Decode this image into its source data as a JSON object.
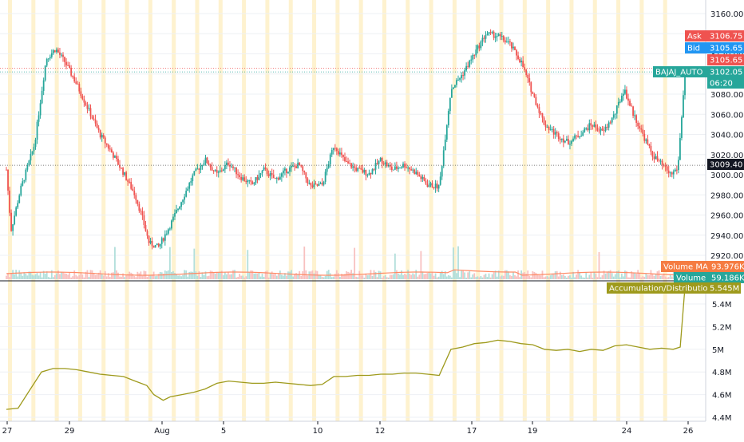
{
  "chart_data": [
    {
      "type": "line",
      "subtype": "candlestick",
      "symbol": "BAJAJ_AUTO",
      "ylim": [
        2905,
        3170
      ],
      "yticks": [
        "3160.00",
        "3140.00",
        "3120.00",
        "3100.00",
        "3080.00",
        "3060.00",
        "3040.00",
        "3020.00",
        "3000.00",
        "2980.00",
        "2960.00",
        "2940.00",
        "2920.00"
      ],
      "anchors": [
        {
          "t": 0,
          "p": 3005
        },
        {
          "t": 0.2,
          "p": 2945
        },
        {
          "t": 0.6,
          "p": 2985
        },
        {
          "t": 1.2,
          "p": 3030
        },
        {
          "t": 1.7,
          "p": 3115
        },
        {
          "t": 2.1,
          "p": 3125
        },
        {
          "t": 2.5,
          "p": 3112
        },
        {
          "t": 3.0,
          "p": 3090
        },
        {
          "t": 3.5,
          "p": 3065
        },
        {
          "t": 4.0,
          "p": 3040
        },
        {
          "t": 4.5,
          "p": 3022
        },
        {
          "t": 5.0,
          "p": 3002
        },
        {
          "t": 5.5,
          "p": 2980
        },
        {
          "t": 5.8,
          "p": 2958
        },
        {
          "t": 6.1,
          "p": 2932
        },
        {
          "t": 6.5,
          "p": 2928
        },
        {
          "t": 7.0,
          "p": 2950
        },
        {
          "t": 7.5,
          "p": 2975
        },
        {
          "t": 8.0,
          "p": 3000
        },
        {
          "t": 8.5,
          "p": 3015
        },
        {
          "t": 9.0,
          "p": 3000
        },
        {
          "t": 9.5,
          "p": 3012
        },
        {
          "t": 10.0,
          "p": 2998
        },
        {
          "t": 10.5,
          "p": 2990
        },
        {
          "t": 11.0,
          "p": 3005
        },
        {
          "t": 11.5,
          "p": 2995
        },
        {
          "t": 12.0,
          "p": 3005
        },
        {
          "t": 12.5,
          "p": 3010
        },
        {
          "t": 13.0,
          "p": 2988
        },
        {
          "t": 13.5,
          "p": 2990
        },
        {
          "t": 14.0,
          "p": 3030
        },
        {
          "t": 14.5,
          "p": 3012
        },
        {
          "t": 15.0,
          "p": 3005
        },
        {
          "t": 15.5,
          "p": 3001
        },
        {
          "t": 16.0,
          "p": 3015
        },
        {
          "t": 16.5,
          "p": 3005
        },
        {
          "t": 17.0,
          "p": 3010
        },
        {
          "t": 17.5,
          "p": 3002
        },
        {
          "t": 18.0,
          "p": 2990
        },
        {
          "t": 18.5,
          "p": 2988
        },
        {
          "t": 19.0,
          "p": 3085
        },
        {
          "t": 19.5,
          "p": 3100
        },
        {
          "t": 20.0,
          "p": 3120
        },
        {
          "t": 20.5,
          "p": 3140
        },
        {
          "t": 21.0,
          "p": 3138
        },
        {
          "t": 21.5,
          "p": 3130
        },
        {
          "t": 22.0,
          "p": 3112
        },
        {
          "t": 22.5,
          "p": 3080
        },
        {
          "t": 23.0,
          "p": 3050
        },
        {
          "t": 23.5,
          "p": 3040
        },
        {
          "t": 24.0,
          "p": 3032
        },
        {
          "t": 24.5,
          "p": 3040
        },
        {
          "t": 25.0,
          "p": 3050
        },
        {
          "t": 25.5,
          "p": 3042
        },
        {
          "t": 26.0,
          "p": 3060
        },
        {
          "t": 26.4,
          "p": 3085
        },
        {
          "t": 26.8,
          "p": 3060
        },
        {
          "t": 27.2,
          "p": 3040
        },
        {
          "t": 27.6,
          "p": 3020
        },
        {
          "t": 28.0,
          "p": 3010
        },
        {
          "t": 28.4,
          "p": 3000
        },
        {
          "t": 28.7,
          "p": 3007
        },
        {
          "t": 29.0,
          "p": 3102
        }
      ],
      "price_tags": [
        {
          "label": "Ask",
          "value": "3106.75",
          "color": "#ef5350"
        },
        {
          "label": "Bid",
          "value": "3105.65",
          "color": "#2196f3"
        },
        {
          "label": "",
          "value": "3105.65",
          "color": "#ef5350"
        },
        {
          "label": "BAJAJ_AUTO",
          "value": "3102.05",
          "color": "#26a69a"
        },
        {
          "label": "",
          "value": "06:20",
          "color": "#26a69a"
        },
        {
          "label": "",
          "value": "3009.40",
          "color": "#131722"
        }
      ],
      "volume": {
        "ma_label": "Volume MA",
        "ma_value": "93.976K",
        "label": "Volume",
        "value": "59.186K"
      }
    },
    {
      "type": "line",
      "series": [
        {
          "name": "Accumulation/Distribution",
          "value_label": "5.545M",
          "color": "#9e9a1c",
          "t": [
            0,
            0.5,
            1,
            1.5,
            2,
            2.5,
            3,
            3.5,
            4,
            4.5,
            5,
            5.5,
            6,
            6.3,
            6.7,
            7,
            7.5,
            8,
            8.5,
            9,
            9.5,
            10,
            10.5,
            11,
            11.5,
            12,
            12.5,
            13,
            13.5,
            14,
            14.5,
            15,
            15.5,
            16,
            16.5,
            17,
            17.5,
            18,
            18.5,
            19,
            19.5,
            20,
            20.5,
            21,
            21.5,
            22,
            22.5,
            23,
            23.5,
            24,
            24.5,
            25,
            25.5,
            26,
            26.5,
            27,
            27.5,
            28,
            28.5,
            28.8,
            29
          ],
          "values": [
            4.47,
            4.48,
            4.64,
            4.8,
            4.83,
            4.83,
            4.82,
            4.8,
            4.78,
            4.77,
            4.76,
            4.72,
            4.68,
            4.6,
            4.55,
            4.58,
            4.6,
            4.62,
            4.65,
            4.7,
            4.72,
            4.71,
            4.7,
            4.7,
            4.71,
            4.7,
            4.69,
            4.68,
            4.69,
            4.76,
            4.76,
            4.77,
            4.77,
            4.78,
            4.78,
            4.79,
            4.79,
            4.78,
            4.77,
            5.0,
            5.02,
            5.05,
            5.06,
            5.08,
            5.07,
            5.05,
            5.04,
            5.0,
            4.99,
            5.0,
            4.98,
            5.0,
            4.99,
            5.03,
            5.04,
            5.02,
            5.0,
            5.01,
            5.0,
            5.02,
            5.545
          ]
        }
      ],
      "ylim": [
        4.4,
        5.6
      ],
      "yticks": [
        "5.4M",
        "5.2M",
        "5M",
        "4.8M",
        "4.6M",
        "4.4M"
      ]
    }
  ],
  "x_axis": {
    "ticks": [
      {
        "label": "27",
        "t": 0
      },
      {
        "label": "29",
        "t": 2
      },
      {
        "label": "Aug",
        "t": 5
      },
      {
        "label": "5",
        "t": 7
      },
      {
        "label": "10",
        "t": 10
      },
      {
        "label": "12",
        "t": 12
      },
      {
        "label": "17",
        "t": 15
      },
      {
        "label": "19",
        "t": 17
      },
      {
        "label": "24",
        "t": 20
      },
      {
        "label": "26",
        "t": 22
      }
    ],
    "session_count": 29
  },
  "colors": {
    "up": "#26a69a",
    "down": "#ef5350",
    "session_band": "#fdeebf",
    "grid": "#eef0f4"
  }
}
